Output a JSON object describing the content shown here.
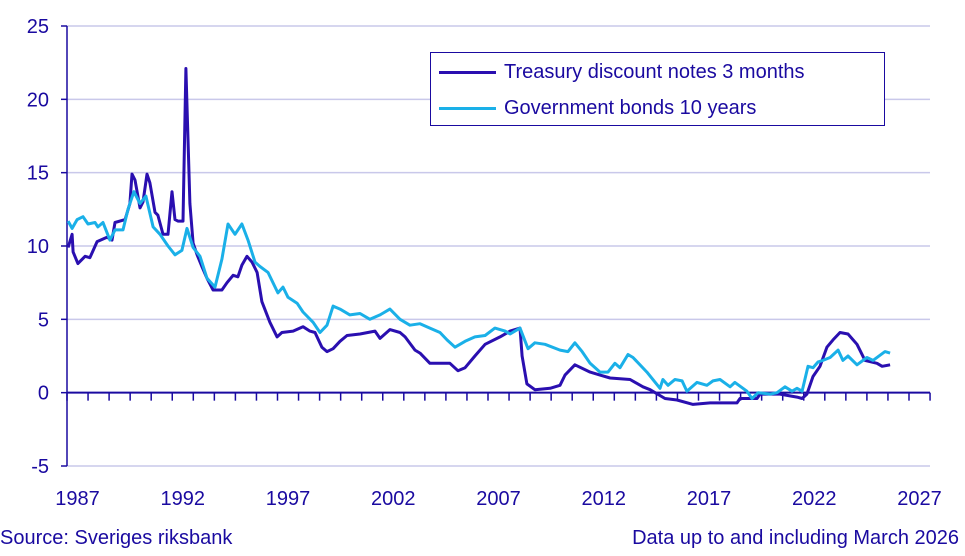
{
  "chart_data": {
    "type": "line",
    "title": "",
    "xlabel": "",
    "ylabel": "",
    "xlim": [
      1987,
      2028
    ],
    "ylim": [
      -5,
      25
    ],
    "yticks": [
      -5,
      0,
      5,
      10,
      15,
      20,
      25
    ],
    "xticks": [
      1987,
      1992,
      1997,
      2002,
      2007,
      2012,
      2017,
      2022,
      2027
    ],
    "grid": "horizontal",
    "legend_position": "top-right",
    "series": [
      {
        "name": "Treasury discount notes 3 months",
        "color": "#2a0fb0",
        "points": [
          [
            1987.05,
            9.9
          ],
          [
            1987.24,
            10.8
          ],
          [
            1987.29,
            9.6
          ],
          [
            1987.52,
            8.8
          ],
          [
            1987.86,
            9.3
          ],
          [
            1988.09,
            9.2
          ],
          [
            1988.43,
            10.3
          ],
          [
            1988.9,
            10.6
          ],
          [
            1989.14,
            10.4
          ],
          [
            1989.28,
            11.6
          ],
          [
            1989.76,
            11.8
          ],
          [
            1989.99,
            12.9
          ],
          [
            1990.09,
            14.9
          ],
          [
            1990.23,
            14.5
          ],
          [
            1990.47,
            12.6
          ],
          [
            1990.61,
            13.0
          ],
          [
            1990.8,
            14.9
          ],
          [
            1990.94,
            14.3
          ],
          [
            1991.18,
            12.3
          ],
          [
            1991.32,
            12.1
          ],
          [
            1991.56,
            10.8
          ],
          [
            1991.8,
            10.8
          ],
          [
            1991.99,
            13.7
          ],
          [
            1992.13,
            11.8
          ],
          [
            1992.27,
            11.7
          ],
          [
            1992.51,
            11.7
          ],
          [
            1992.65,
            22.1
          ],
          [
            1992.84,
            12.9
          ],
          [
            1992.99,
            10.2
          ],
          [
            1993.18,
            9.4
          ],
          [
            1993.41,
            8.6
          ],
          [
            1993.65,
            7.8
          ],
          [
            1993.94,
            7.0
          ],
          [
            1994.36,
            7.0
          ],
          [
            1994.6,
            7.5
          ],
          [
            1994.89,
            8.0
          ],
          [
            1995.12,
            7.9
          ],
          [
            1995.31,
            8.7
          ],
          [
            1995.55,
            9.3
          ],
          [
            1995.79,
            8.9
          ],
          [
            1996.03,
            8.2
          ],
          [
            1996.26,
            6.2
          ],
          [
            1996.64,
            4.8
          ],
          [
            1996.98,
            3.8
          ],
          [
            1997.21,
            4.1
          ],
          [
            1997.74,
            4.2
          ],
          [
            1998.21,
            4.5
          ],
          [
            1998.54,
            4.2
          ],
          [
            1998.78,
            4.1
          ],
          [
            1999.11,
            3.1
          ],
          [
            1999.35,
            2.8
          ],
          [
            1999.64,
            3.0
          ],
          [
            1999.97,
            3.5
          ],
          [
            2000.3,
            3.9
          ],
          [
            2000.92,
            4.0
          ],
          [
            2001.63,
            4.2
          ],
          [
            2001.87,
            3.7
          ],
          [
            2002.34,
            4.3
          ],
          [
            2002.82,
            4.1
          ],
          [
            2003.06,
            3.8
          ],
          [
            2003.53,
            2.9
          ],
          [
            2003.77,
            2.7
          ],
          [
            2004.24,
            2.0
          ],
          [
            2005.19,
            2.0
          ],
          [
            2005.57,
            1.5
          ],
          [
            2005.91,
            1.7
          ],
          [
            2006.38,
            2.5
          ],
          [
            2006.86,
            3.3
          ],
          [
            2007.57,
            3.8
          ],
          [
            2008.05,
            4.2
          ],
          [
            2008.52,
            4.4
          ],
          [
            2008.62,
            2.5
          ],
          [
            2008.85,
            0.6
          ],
          [
            2009.23,
            0.2
          ],
          [
            2009.95,
            0.3
          ],
          [
            2010.42,
            0.5
          ],
          [
            2010.66,
            1.2
          ],
          [
            2011.13,
            1.9
          ],
          [
            2011.85,
            1.4
          ],
          [
            2012.32,
            1.2
          ],
          [
            2012.8,
            1.0
          ],
          [
            2013.75,
            0.9
          ],
          [
            2014.36,
            0.4
          ],
          [
            2014.7,
            0.2
          ],
          [
            2015.41,
            -0.4
          ],
          [
            2015.98,
            -0.5
          ],
          [
            2016.74,
            -0.8
          ],
          [
            2017.55,
            -0.7
          ],
          [
            2018.83,
            -0.7
          ],
          [
            2018.97,
            -0.4
          ],
          [
            2019.78,
            -0.4
          ],
          [
            2019.92,
            -0.1
          ],
          [
            2020.87,
            -0.1
          ],
          [
            2021.68,
            -0.3
          ],
          [
            2021.92,
            -0.4
          ],
          [
            2022.15,
            -0.1
          ],
          [
            2022.44,
            1.1
          ],
          [
            2022.77,
            1.8
          ],
          [
            2023.1,
            3.1
          ],
          [
            2023.39,
            3.6
          ],
          [
            2023.72,
            4.1
          ],
          [
            2024.1,
            4.0
          ],
          [
            2024.53,
            3.3
          ],
          [
            2024.91,
            2.2
          ],
          [
            2025.48,
            2.0
          ],
          [
            2025.72,
            1.8
          ],
          [
            2026.1,
            1.9
          ]
        ]
      },
      {
        "name": "Government bonds 10 years",
        "color": "#1ab0e8",
        "points": [
          [
            1987.05,
            11.7
          ],
          [
            1987.24,
            11.2
          ],
          [
            1987.48,
            11.8
          ],
          [
            1987.76,
            12.0
          ],
          [
            1988.0,
            11.5
          ],
          [
            1988.33,
            11.6
          ],
          [
            1988.47,
            11.3
          ],
          [
            1988.71,
            11.6
          ],
          [
            1989.04,
            10.4
          ],
          [
            1989.28,
            11.1
          ],
          [
            1989.66,
            11.1
          ],
          [
            1989.9,
            12.5
          ],
          [
            1990.18,
            13.7
          ],
          [
            1990.47,
            12.9
          ],
          [
            1990.75,
            13.4
          ],
          [
            1991.09,
            11.3
          ],
          [
            1991.42,
            10.8
          ],
          [
            1991.8,
            10.0
          ],
          [
            1992.13,
            9.4
          ],
          [
            1992.46,
            9.7
          ],
          [
            1992.7,
            11.2
          ],
          [
            1992.99,
            9.9
          ],
          [
            1993.32,
            9.3
          ],
          [
            1993.65,
            7.8
          ],
          [
            1994.03,
            7.2
          ],
          [
            1994.36,
            9.1
          ],
          [
            1994.65,
            11.5
          ],
          [
            1994.98,
            10.8
          ],
          [
            1995.31,
            11.5
          ],
          [
            1995.6,
            10.4
          ],
          [
            1995.93,
            8.9
          ],
          [
            1996.17,
            8.6
          ],
          [
            1996.55,
            8.2
          ],
          [
            1997.02,
            6.8
          ],
          [
            1997.26,
            7.2
          ],
          [
            1997.5,
            6.5
          ],
          [
            1997.93,
            6.1
          ],
          [
            1998.21,
            5.5
          ],
          [
            1998.69,
            4.8
          ],
          [
            1999.02,
            4.1
          ],
          [
            1999.35,
            4.6
          ],
          [
            1999.64,
            5.9
          ],
          [
            1999.97,
            5.7
          ],
          [
            2000.44,
            5.3
          ],
          [
            2000.92,
            5.4
          ],
          [
            2001.39,
            5.0
          ],
          [
            2001.87,
            5.3
          ],
          [
            2002.34,
            5.7
          ],
          [
            2002.82,
            5.0
          ],
          [
            2003.29,
            4.6
          ],
          [
            2003.77,
            4.7
          ],
          [
            2004.24,
            4.4
          ],
          [
            2004.72,
            4.1
          ],
          [
            2005.05,
            3.6
          ],
          [
            2005.43,
            3.1
          ],
          [
            2005.91,
            3.5
          ],
          [
            2006.38,
            3.8
          ],
          [
            2006.86,
            3.9
          ],
          [
            2007.33,
            4.4
          ],
          [
            2007.81,
            4.2
          ],
          [
            2008.05,
            4.0
          ],
          [
            2008.52,
            4.4
          ],
          [
            2008.9,
            3.0
          ],
          [
            2009.23,
            3.4
          ],
          [
            2009.71,
            3.3
          ],
          [
            2010.42,
            2.9
          ],
          [
            2010.8,
            2.8
          ],
          [
            2011.13,
            3.4
          ],
          [
            2011.47,
            2.8
          ],
          [
            2011.85,
            2.0
          ],
          [
            2012.32,
            1.4
          ],
          [
            2012.7,
            1.4
          ],
          [
            2013.03,
            2.0
          ],
          [
            2013.27,
            1.7
          ],
          [
            2013.65,
            2.6
          ],
          [
            2013.89,
            2.4
          ],
          [
            2014.55,
            1.4
          ],
          [
            2015.17,
            0.3
          ],
          [
            2015.31,
            0.9
          ],
          [
            2015.55,
            0.5
          ],
          [
            2015.88,
            0.9
          ],
          [
            2016.22,
            0.8
          ],
          [
            2016.45,
            0.1
          ],
          [
            2016.93,
            0.7
          ],
          [
            2017.4,
            0.5
          ],
          [
            2017.69,
            0.8
          ],
          [
            2018.02,
            0.9
          ],
          [
            2018.5,
            0.4
          ],
          [
            2018.73,
            0.7
          ],
          [
            2019.3,
            0.1
          ],
          [
            2019.54,
            -0.4
          ],
          [
            2019.83,
            0.0
          ],
          [
            2020.4,
            -0.1
          ],
          [
            2020.73,
            0.0
          ],
          [
            2021.11,
            0.4
          ],
          [
            2021.44,
            0.1
          ],
          [
            2021.68,
            0.3
          ],
          [
            2021.92,
            0.1
          ],
          [
            2022.2,
            1.8
          ],
          [
            2022.44,
            1.7
          ],
          [
            2022.68,
            2.1
          ],
          [
            2022.91,
            2.2
          ],
          [
            2023.25,
            2.4
          ],
          [
            2023.63,
            2.9
          ],
          [
            2023.86,
            2.2
          ],
          [
            2024.1,
            2.5
          ],
          [
            2024.53,
            1.9
          ],
          [
            2025.0,
            2.4
          ],
          [
            2025.29,
            2.2
          ],
          [
            2025.86,
            2.8
          ],
          [
            2026.1,
            2.7
          ]
        ]
      }
    ]
  },
  "footer": {
    "source": "Source: Sveriges riksbank",
    "note": "Data up to and including March 2026"
  },
  "colors": {
    "axis": "#1a0aa0",
    "grid": "#c9c8ea"
  }
}
